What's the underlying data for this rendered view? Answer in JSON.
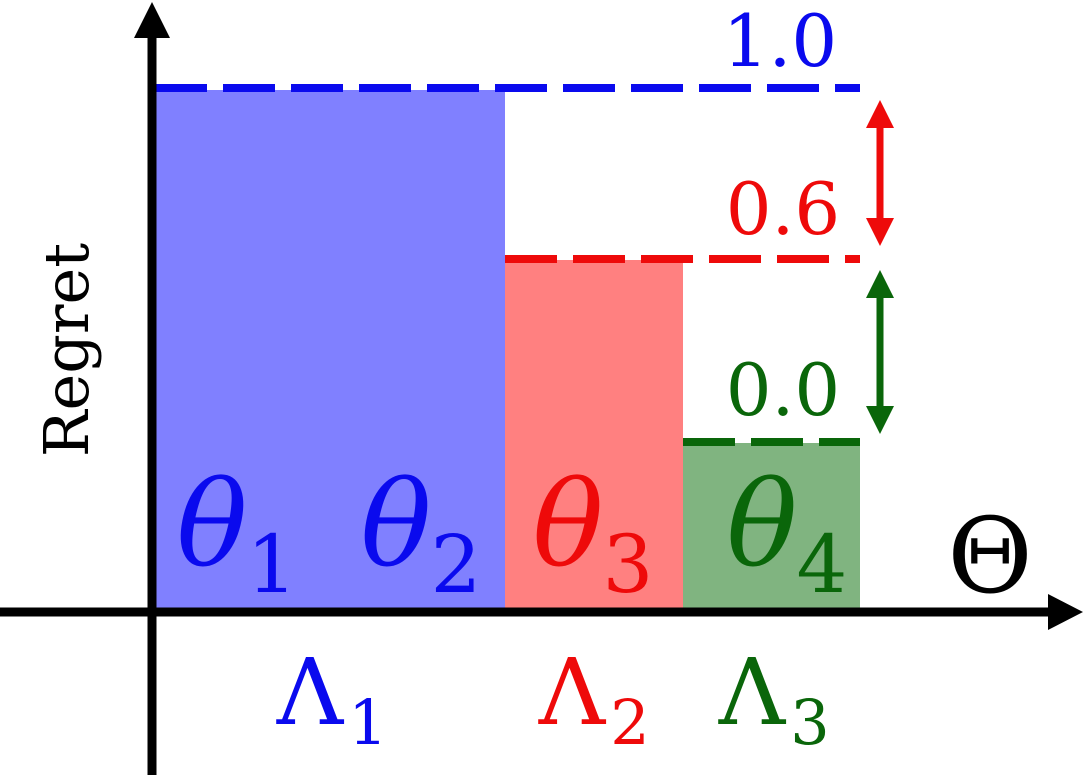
{
  "axes": {
    "y_label": "Regret",
    "x_label": "Θ"
  },
  "colors": {
    "blue": "#0a0aee",
    "blue_fill": "#8080ff",
    "red": "#ee0a0a",
    "red_fill": "#ff8080",
    "green": "#0a660a",
    "green_fill": "#80b480",
    "axis": "#000000"
  },
  "levels": [
    {
      "value_label": "1.0",
      "color": "blue"
    },
    {
      "value_label": "0.6",
      "color": "red"
    },
    {
      "value_label": "0.0",
      "color": "green"
    }
  ],
  "regions": [
    {
      "symbol": "θ",
      "subscript": "1",
      "color": "blue"
    },
    {
      "symbol": "θ",
      "subscript": "2",
      "color": "blue"
    },
    {
      "symbol": "θ",
      "subscript": "3",
      "color": "red"
    },
    {
      "symbol": "θ",
      "subscript": "4",
      "color": "green"
    }
  ],
  "groups": [
    {
      "symbol": "Λ",
      "subscript": "1",
      "color": "blue"
    },
    {
      "symbol": "Λ",
      "subscript": "2",
      "color": "red"
    },
    {
      "symbol": "Λ",
      "subscript": "3",
      "color": "green"
    }
  ]
}
